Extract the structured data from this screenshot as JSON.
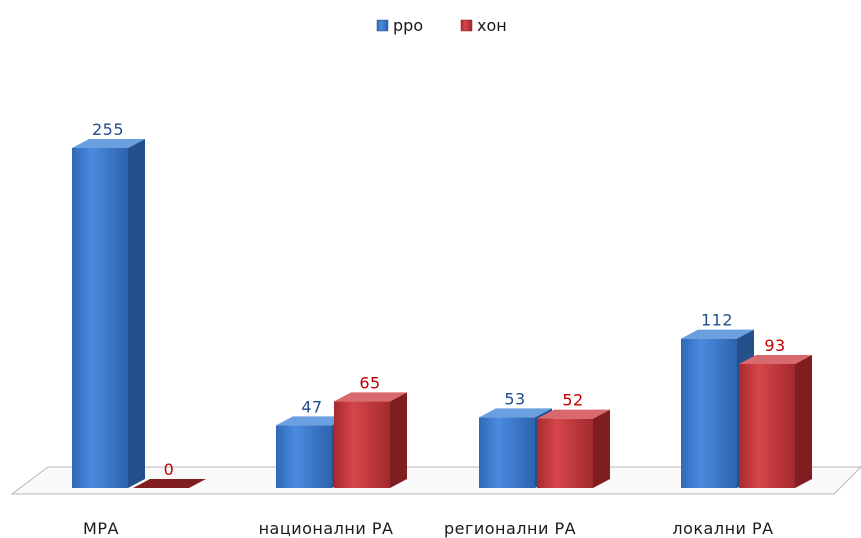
{
  "chart_data": {
    "type": "bar",
    "title": "",
    "xlabel": "",
    "ylabel": "",
    "categories": [
      "МРА",
      "национални  РА",
      "регионални РА",
      "локални РА"
    ],
    "series": [
      {
        "name": "рро",
        "values": [
          255,
          47,
          53,
          112
        ],
        "color": "#3b78c9",
        "label_color": "#1f4e8c"
      },
      {
        "name": "хон",
        "values": [
          0,
          65,
          52,
          93
        ],
        "color": "#c0353a",
        "label_color": "#c00000"
      }
    ],
    "ylim": [
      0,
      255
    ],
    "grid": false,
    "legend": "top-center",
    "style": "3d-column"
  }
}
